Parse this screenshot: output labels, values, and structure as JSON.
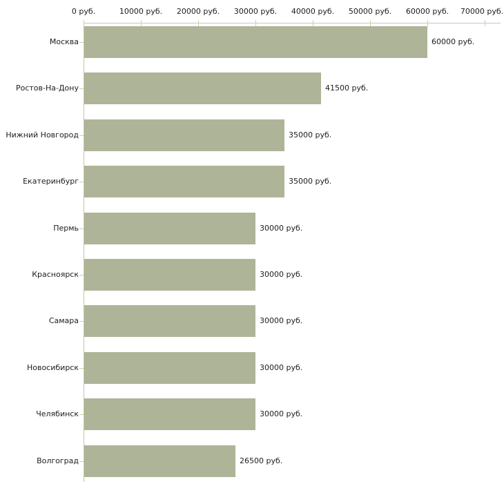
{
  "chart_data": {
    "type": "bar",
    "orientation": "horizontal",
    "title": "",
    "xlabel": "",
    "ylabel": "",
    "grid": false,
    "legend": "none",
    "categories": [
      "Москва",
      "Ростов-На-Дону",
      "Нижний Новгород",
      "Екатеринбург",
      "Пермь",
      "Красноярск",
      "Самара",
      "Новосибирск",
      "Челябинск",
      "Волгоград"
    ],
    "values": [
      60000,
      41500,
      35000,
      35000,
      30000,
      30000,
      30000,
      30000,
      30000,
      26500
    ],
    "value_labels": [
      "60000 руб.",
      "41500 руб.",
      "35000 руб.",
      "35000 руб.",
      "30000 руб.",
      "30000 руб.",
      "30000 руб.",
      "30000 руб.",
      "30000 руб.",
      "26500 руб."
    ],
    "x_axis": {
      "position": "top",
      "min": 0,
      "max": 70000,
      "step": 10000,
      "tick_values": [
        0,
        10000,
        20000,
        30000,
        40000,
        50000,
        60000,
        70000
      ],
      "tick_labels": [
        "0 руб.",
        "10000 руб.",
        "20000 руб.",
        "30000 руб.",
        "40000 руб.",
        "50000 руб.",
        "60000 руб.",
        "70000 руб."
      ],
      "unit_suffix": " руб."
    },
    "colors": {
      "bar": "#aeb498",
      "axis_line": "#c6c6c6",
      "category_axis_line": "#c4c4a4",
      "tick": "#cfcf9f",
      "text": "#1c1c1c",
      "background": "#ffffff"
    }
  }
}
